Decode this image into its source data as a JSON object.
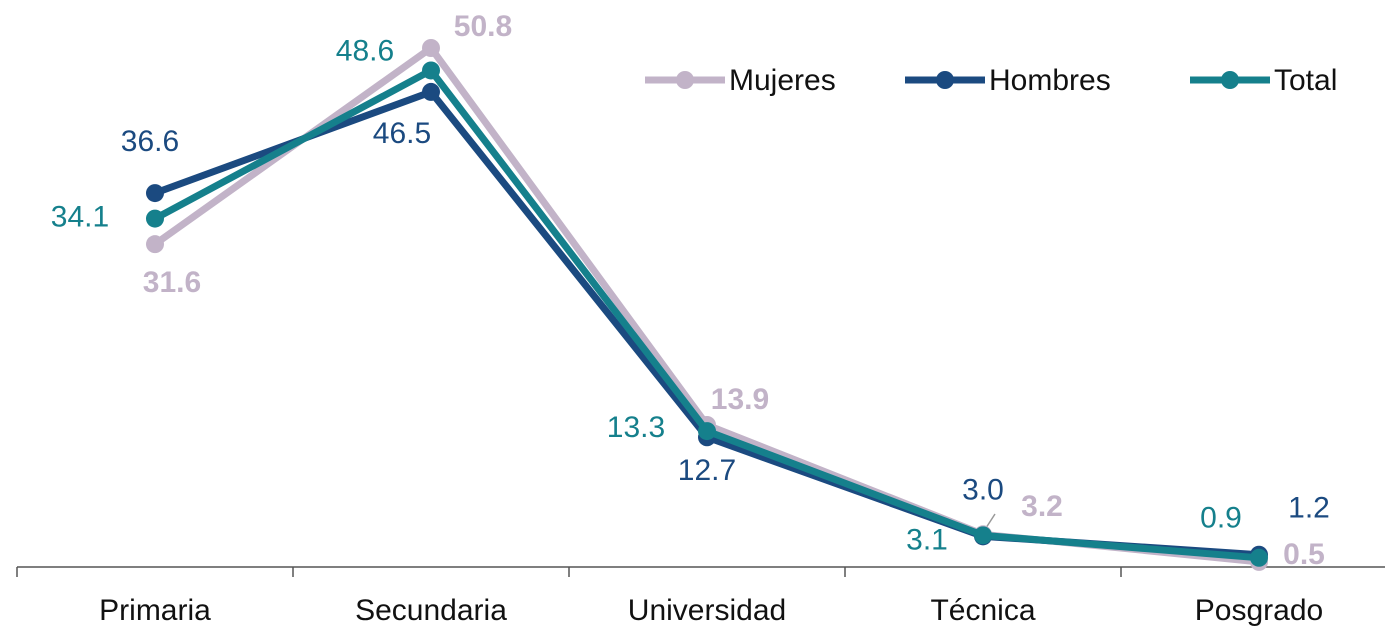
{
  "chart_data": {
    "type": "line",
    "categories": [
      "Primaria",
      "Secundaria",
      "Universidad",
      "Técnica",
      "Posgrado"
    ],
    "series": [
      {
        "name": "Mujeres",
        "color": "#c2b3c8",
        "values": [
          31.6,
          50.8,
          13.9,
          3.2,
          0.5
        ],
        "value_labels": [
          "31.6",
          "50.8",
          "13.9",
          "3.2",
          "0.5"
        ]
      },
      {
        "name": "Hombres",
        "color": "#1b4a80",
        "values": [
          36.6,
          46.5,
          12.7,
          3.0,
          1.2
        ],
        "value_labels": [
          "36.6",
          "46.5",
          "12.7",
          "3.0",
          "1.2"
        ]
      },
      {
        "name": "Total",
        "color": "#15808c",
        "values": [
          34.1,
          48.6,
          13.3,
          3.1,
          0.9
        ],
        "value_labels": [
          "34.1",
          "48.6",
          "13.3",
          "3.1",
          "0.9"
        ]
      }
    ],
    "legend": "top-right"
  }
}
